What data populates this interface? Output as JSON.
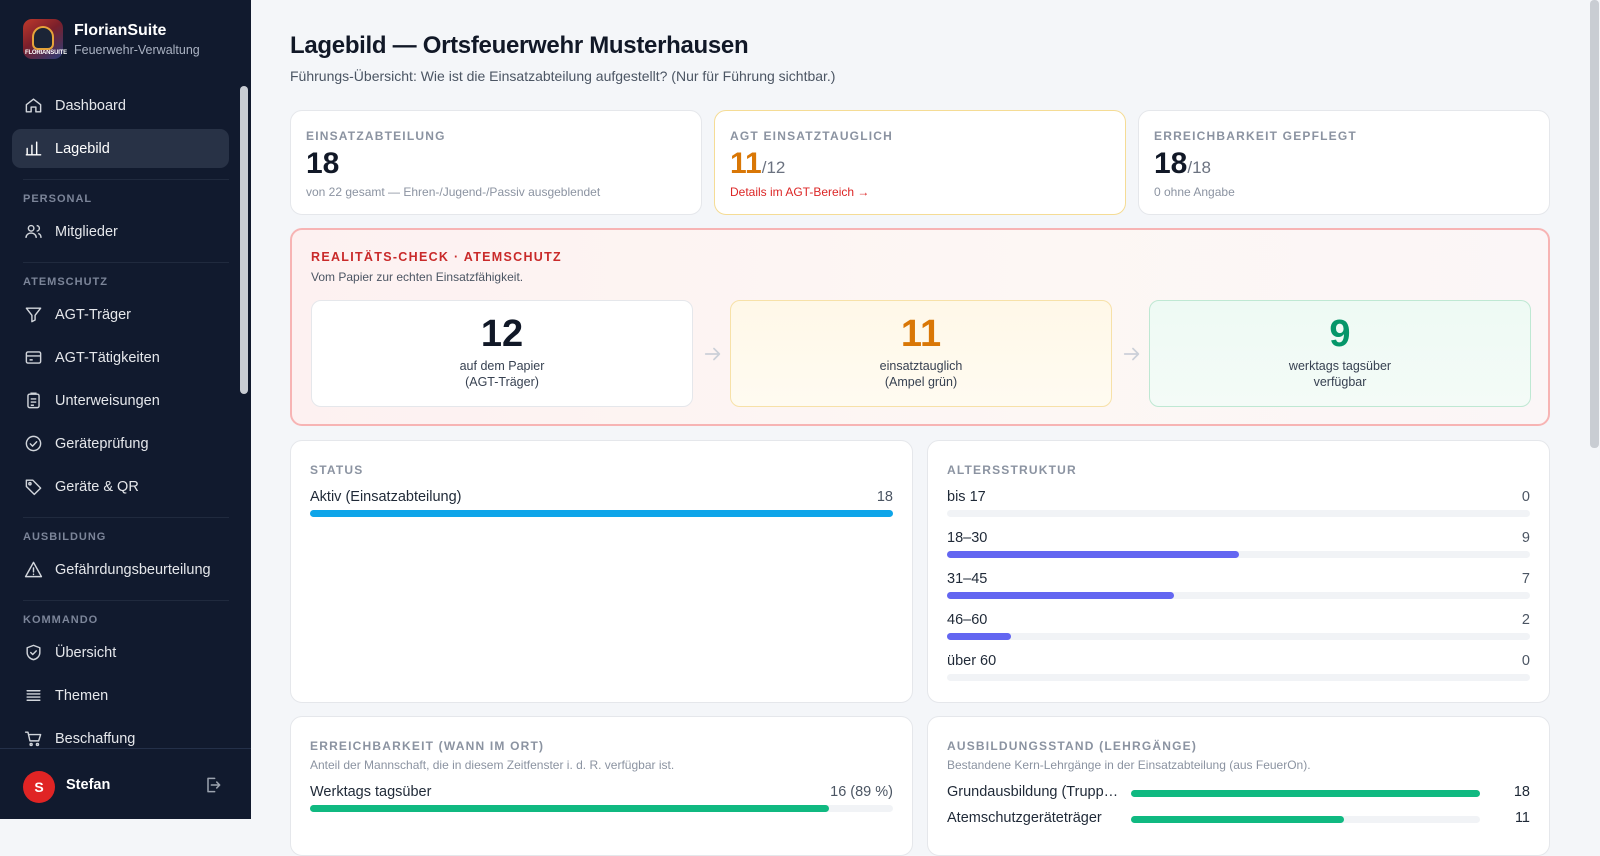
{
  "brand": {
    "name": "FlorianSuite",
    "subtitle": "Feuerwehr-Verwaltung",
    "logo_text": "FLORIANSUITE"
  },
  "nav": {
    "dashboard": "Dashboard",
    "lagebild": "Lagebild",
    "section_personal": "PERSONAL",
    "mitglieder": "Mitglieder",
    "section_atemschutz": "ATEMSCHUTZ",
    "agt_traeger": "AGT-Träger",
    "agt_taetigkeiten": "AGT-Tätigkeiten",
    "unterweisungen": "Unterweisungen",
    "geraetepruefung": "Geräteprüfung",
    "geraete_qr": "Geräte & QR",
    "section_ausbildung": "AUSBILDUNG",
    "gefaehrdung": "Gefährdungsbeurteilung",
    "section_kommando": "KOMMANDO",
    "uebersicht": "Übersicht",
    "themen": "Themen",
    "beschaffung": "Beschaffung"
  },
  "user": {
    "initial": "S",
    "name": "Stefan"
  },
  "page": {
    "title": "Lagebild — Ortsfeuerwehr Musterhausen",
    "subtitle": "Führungs-Übersicht: Wie ist die Einsatzabteilung aufgestellt? (Nur für Führung sichtbar.)"
  },
  "stats": [
    {
      "label": "EINSATZABTEILUNG",
      "value": "18",
      "of": "",
      "foot": "von 22 gesamt — Ehren-/Jugend-/Passiv ausgeblendet"
    },
    {
      "label": "AGT EINSATZTAUGLICH",
      "value": "11",
      "of": "/12",
      "foot": "Details im AGT-Bereich →"
    },
    {
      "label": "ERREICHBARKEIT GEPFLEGT",
      "value": "18",
      "of": "/18",
      "foot": "0 ohne Angabe"
    }
  ],
  "reality": {
    "title": "REALITÄTS-CHECK · ATEMSCHUTZ",
    "subtitle": "Vom Papier zur echten Einsatzfähigkeit.",
    "steps": [
      {
        "value": "12",
        "line1": "auf dem Papier",
        "line2": "(AGT-Träger)",
        "color": "#111827"
      },
      {
        "value": "11",
        "line1": "einsatztauglich",
        "line2": "(Ampel grün)",
        "color": "#d97706"
      },
      {
        "value": "9",
        "line1": "werktags tagsüber",
        "line2": "verfügbar",
        "color": "#059669"
      }
    ]
  },
  "status": {
    "label": "STATUS",
    "rows": [
      {
        "label": "Aktiv (Einsatzabteilung)",
        "value": "18",
        "fraction": 1.0
      }
    ],
    "color": "#0ea5e9"
  },
  "alter": {
    "label": "ALTERSSTRUKTUR",
    "color": "#6366f1",
    "rows": [
      {
        "label": "bis 17",
        "value": "0",
        "fraction": 0.0
      },
      {
        "label": "18–30",
        "value": "9",
        "fraction": 0.5
      },
      {
        "label": "31–45",
        "value": "7",
        "fraction": 0.39
      },
      {
        "label": "46–60",
        "value": "2",
        "fraction": 0.11
      },
      {
        "label": "über 60",
        "value": "0",
        "fraction": 0.0
      }
    ]
  },
  "erreichbarkeit": {
    "label": "ERREICHBARKEIT (WANN IM ORT)",
    "subtitle": "Anteil der Mannschaft, die in diesem Zeitfenster i. d. R. verfügbar ist.",
    "color": "#10b981",
    "rows": [
      {
        "label": "Werktags tagsüber",
        "value": "16 (89 %)",
        "fraction": 0.89
      }
    ]
  },
  "ausbildung": {
    "label": "AUSBILDUNGSSTAND (LEHRGÄNGE)",
    "subtitle": "Bestandene Kern-Lehrgänge in der Einsatzabteilung (aus FeuerOn).",
    "color": "#10b981",
    "rows": [
      {
        "label": "Grundausbildung (Trupp…",
        "value": "18",
        "fraction": 1.0
      },
      {
        "label": "Atemschutzgeräteträger",
        "value": "11",
        "fraction": 0.61
      }
    ]
  }
}
